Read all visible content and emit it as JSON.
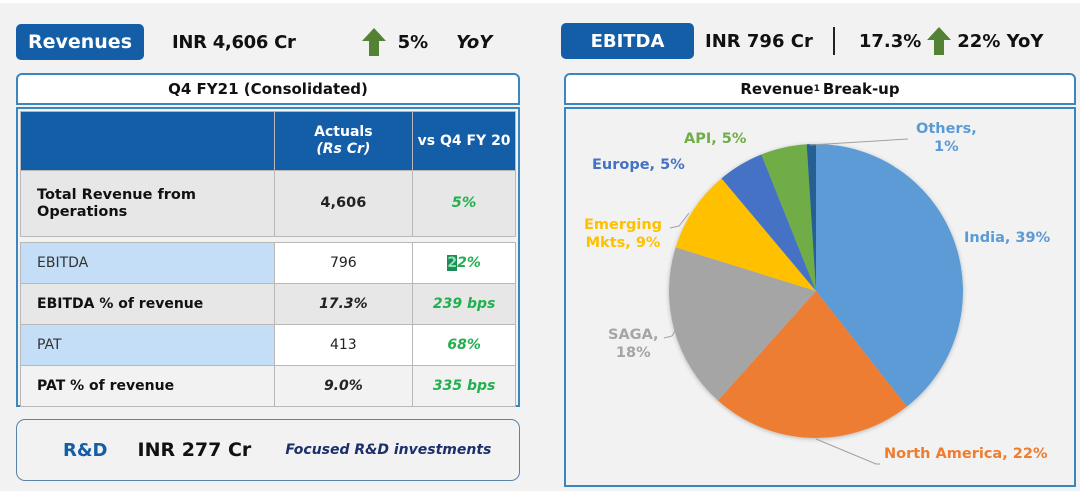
{
  "revenues": {
    "label": "Revenues",
    "value": "INR 4,606 Cr",
    "growth": "5%",
    "period": "YoY",
    "arrow_icon": "up-arrow-icon"
  },
  "ebitda": {
    "label": "EBITDA",
    "value": "INR 796 Cr",
    "margin": "17.3%",
    "growth": "22% YoY",
    "arrow_icon": "up-arrow-icon"
  },
  "colors": {
    "brand_blue": "#145ea8",
    "arrow_green": "#548235",
    "positive_green": "#22b04f"
  },
  "table": {
    "title": "Q4 FY21 (Consolidated)",
    "headers": [
      "",
      "Actuals",
      "(Rs Cr)",
      "vs Q4 FY 20"
    ],
    "rows": [
      {
        "label": "Total Revenue from Operations",
        "actual": "4,606",
        "change": "5%"
      },
      {
        "label": "EBITDA",
        "actual": "796",
        "change_first": "2",
        "change_rest": "2%"
      },
      {
        "label": "EBITDA % of revenue",
        "actual": "17.3%",
        "change": "239 bps"
      },
      {
        "label": "PAT",
        "actual": "413",
        "change": "68%"
      },
      {
        "label": "PAT % of revenue",
        "actual": "9.0%",
        "change": "335 bps"
      }
    ]
  },
  "rd": {
    "label": "R&D",
    "value": "INR 277 Cr",
    "description": "Focused R&D investments"
  },
  "chart_data": {
    "type": "pie",
    "title": "Revenue¹ Break-up",
    "title_main": "Revenue",
    "title_sup": "1",
    "title_rest": "Break-up",
    "start_angle_deg": 0,
    "direction": "clockwise",
    "slices": [
      {
        "name": "India",
        "value": 39,
        "label": "India, 39%",
        "color": "#5b9bd5"
      },
      {
        "name": "North America",
        "value": 22,
        "label": "North America, 22%",
        "color": "#ed7d31"
      },
      {
        "name": "SAGA",
        "value": 18,
        "label": "SAGA, 18%",
        "color": "#a5a5a5"
      },
      {
        "name": "Emerging Mkts",
        "value": 9,
        "label": "Emerging Mkts, 9%",
        "color": "#ffc000"
      },
      {
        "name": "Europe",
        "value": 5,
        "label": "Europe, 5%",
        "color": "#4472c4"
      },
      {
        "name": "API",
        "value": 5,
        "label": "API, 5%",
        "color": "#70ad47"
      },
      {
        "name": "Others",
        "value": 1,
        "label": "Others, 1%",
        "color": "#255e91"
      }
    ],
    "label_lines": {
      "india": "India, 39%",
      "north_america": "North America, 22%",
      "saga_1": "SAGA,",
      "saga_2": "18%",
      "emerging_1": "Emerging",
      "emerging_2": "Mkts, 9%",
      "europe": "Europe, 5%",
      "api": "API, 5%",
      "others_1": "Others,",
      "others_2": "1%"
    }
  }
}
